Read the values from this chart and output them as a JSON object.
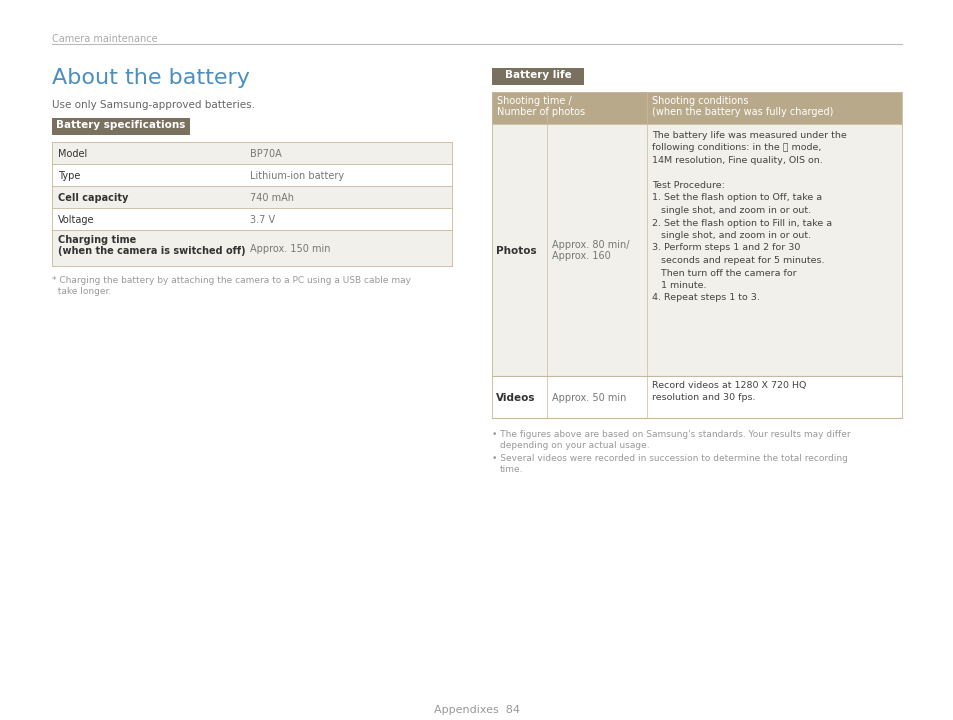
{
  "bg_color": "#ffffff",
  "header_text": "Camera maintenance",
  "header_line_color": "#bbbbbb",
  "title": "About the battery",
  "title_color": "#4a8fc0",
  "subtitle": "Use only Samsung-approved batteries.",
  "subtitle_color": "#666666",
  "badge1_text": "Battery specifications",
  "badge2_text": "Battery life",
  "badge_bg": "#7a7060",
  "badge_text_color": "#ffffff",
  "spec_table_rows": [
    [
      "Model",
      "BP70A",
      false
    ],
    [
      "Type",
      "Lithium-ion battery",
      false
    ],
    [
      "Cell capacity",
      "740 mAh",
      true
    ],
    [
      "Voltage",
      "3.7 V",
      false
    ],
    [
      "Charging time\n(when the camera is switched off)",
      "Approx. 150 min",
      true
    ]
  ],
  "spec_row_bg_even": "#f2f0ea",
  "spec_row_bg_odd": "#ffffff",
  "spec_border_color": "#c8b89a",
  "spec_note_line1": "* Charging the battery by attaching the camera to a PC using a USB cable may",
  "spec_note_line2": "  take longer.",
  "spec_note_color": "#999999",
  "life_header_bg": "#b8a98a",
  "life_col1_header_line1": "Shooting time /",
  "life_col1_header_line2": "Number of photos",
  "life_col2_header_line1": "Shooting conditions",
  "life_col2_header_line2": "(when the battery was fully charged)",
  "life_row_bg": "#f2f0ea",
  "life_row2_bg": "#ffffff",
  "life_photos_label": "Photos",
  "life_photos_time_line1": "Approx. 80 min/",
  "life_photos_time_line2": "Approx. 160",
  "life_cond_lines": [
    "The battery life was measured under the",
    "following conditions: in the Ⓟ mode,",
    "14M resolution, Fine quality, OIS on.",
    "",
    "Test Procedure:",
    "1. Set the flash option to Off, take a",
    "   single shot, and zoom in or out.",
    "2. Set the flash option to Fill in, take a",
    "   single shot, and zoom in or out.",
    "3. Perform steps 1 and 2 for 30",
    "   seconds and repeat for 5 minutes.",
    "   Then turn off the camera for",
    "   1 minute.",
    "4. Repeat steps 1 to 3."
  ],
  "life_videos_label": "Videos",
  "life_videos_time": "Approx. 50 min",
  "life_videos_cond_line1": "Record videos at 1280 X 720 HQ",
  "life_videos_cond_line2": "resolution and 30 fps.",
  "life_note1_line1": "The figures above are based on Samsung's standards. Your results may differ",
  "life_note1_line2": "depending on your actual usage.",
  "life_note2_line1": "Several videos were recorded in succession to determine the total recording",
  "life_note2_line2": "time.",
  "note_color": "#999999",
  "page_number": "84",
  "page_label": "Appendixes",
  "footer_color": "#999999"
}
